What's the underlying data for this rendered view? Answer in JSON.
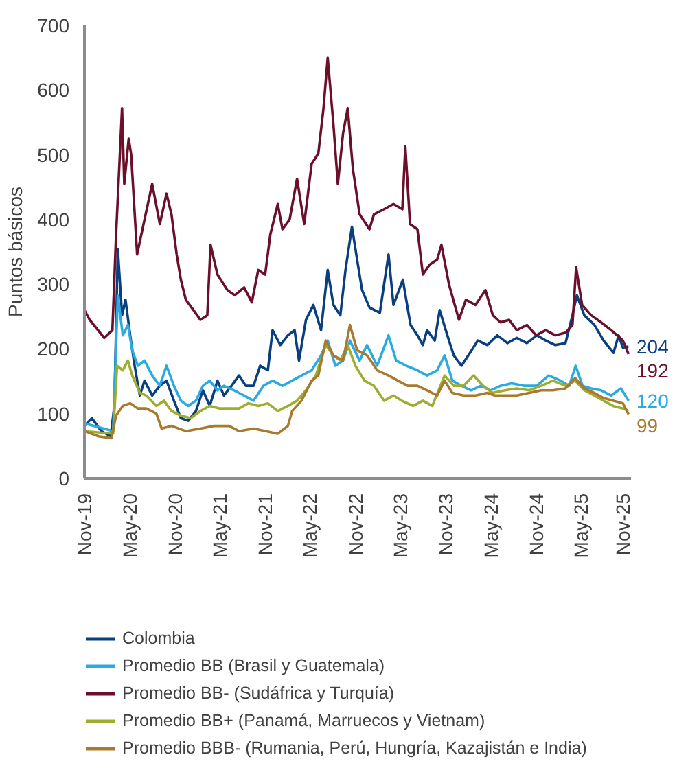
{
  "chart_data": {
    "type": "line",
    "ylabel": "Puntos básicos",
    "legend": "bottom",
    "grid": false,
    "line_style": "solid",
    "xlim": [
      "2019-11-01",
      "2025-11-20"
    ],
    "ylim": [
      0,
      700
    ],
    "yticks": [
      0,
      100,
      200,
      300,
      400,
      500,
      600,
      700
    ],
    "xticks": [
      {
        "value": "2019-11-01",
        "label": "Nov-19"
      },
      {
        "value": "2020-05-01",
        "label": "May-20"
      },
      {
        "value": "2020-11-01",
        "label": "Nov-20"
      },
      {
        "value": "2021-05-01",
        "label": "May-21"
      },
      {
        "value": "2021-11-01",
        "label": "Nov-21"
      },
      {
        "value": "2022-05-01",
        "label": "May-22"
      },
      {
        "value": "2022-11-01",
        "label": "Nov-22"
      },
      {
        "value": "2023-05-01",
        "label": "May-23"
      },
      {
        "value": "2023-11-01",
        "label": "Nov-23"
      },
      {
        "value": "2024-05-01",
        "label": "May-24"
      },
      {
        "value": "2024-11-01",
        "label": "Nov-24"
      },
      {
        "value": "2025-05-01",
        "label": "May-25"
      },
      {
        "value": "2025-11-01",
        "label": "Nov-25"
      }
    ],
    "series": [
      {
        "name": "Colombia",
        "color": "#0a3f7f",
        "x": [
          "2019-11-01",
          "2019-12-01",
          "2020-01-08",
          "2020-02-15",
          "2020-03-01",
          "2020-03-15",
          "2020-04-01",
          "2020-04-15",
          "2020-05-04",
          "2020-05-22",
          "2020-06-12",
          "2020-07-01",
          "2020-08-01",
          "2020-09-01",
          "2020-09-28",
          "2020-10-28",
          "2020-11-25",
          "2020-12-25",
          "2021-01-25",
          "2021-02-22",
          "2021-03-22",
          "2021-04-22",
          "2021-05-18",
          "2021-06-18",
          "2021-07-18",
          "2021-08-15",
          "2021-09-15",
          "2021-10-12",
          "2021-11-12",
          "2021-12-01",
          "2022-01-01",
          "2022-02-01",
          "2022-02-28",
          "2022-03-18",
          "2022-04-15",
          "2022-05-15",
          "2022-06-15",
          "2022-07-12",
          "2022-08-04",
          "2022-09-01",
          "2022-09-22",
          "2022-10-18",
          "2022-11-08",
          "2022-11-28",
          "2022-12-28",
          "2023-02-08",
          "2023-03-15",
          "2023-04-04",
          "2023-05-12",
          "2023-06-12",
          "2023-07-10",
          "2023-08-01",
          "2023-08-18",
          "2023-09-18",
          "2023-10-08",
          "2023-11-08",
          "2023-12-04",
          "2024-01-04",
          "2024-02-01",
          "2024-03-10",
          "2024-04-18",
          "2024-05-28",
          "2024-07-08",
          "2024-08-15",
          "2024-09-25",
          "2024-11-04",
          "2024-12-10",
          "2025-01-18",
          "2025-02-28",
          "2025-03-28",
          "2025-04-15",
          "2025-05-15",
          "2025-06-25",
          "2025-08-01",
          "2025-09-10",
          "2025-10-01",
          "2025-10-18",
          "2025-11-10"
        ],
        "values": [
          81,
          93,
          73,
          65,
          112,
          354,
          252,
          276,
          221,
          174,
          128,
          151,
          128,
          143,
          151,
          120,
          93,
          89,
          104,
          136,
          112,
          151,
          128,
          143,
          159,
          143,
          143,
          174,
          167,
          229,
          206,
          221,
          229,
          182,
          245,
          268,
          229,
          322,
          268,
          252,
          322,
          389,
          338,
          291,
          264,
          256,
          346,
          268,
          307,
          237,
          221,
          206,
          229,
          213,
          260,
          221,
          190,
          174,
          190,
          213,
          206,
          221,
          209,
          217,
          209,
          221,
          213,
          206,
          209,
          252,
          283,
          252,
          237,
          213,
          194,
          221,
          202,
          204
        ],
        "value_labels": [
          null,
          null,
          null,
          null,
          null,
          null,
          null,
          null,
          null,
          null,
          null,
          null,
          null,
          null,
          null,
          null,
          null,
          null,
          null,
          null,
          null,
          null,
          null,
          null,
          null,
          null,
          null,
          null,
          null,
          null,
          null,
          null,
          null,
          null,
          null,
          null,
          null,
          null,
          null,
          null,
          null,
          null,
          null,
          null,
          null,
          null,
          null,
          null,
          null,
          null,
          null,
          null,
          null,
          null,
          null,
          null,
          null,
          null,
          null,
          null,
          null,
          null,
          null,
          null,
          null,
          null,
          null,
          null,
          null,
          null,
          null,
          null,
          null,
          null,
          null,
          null,
          null,
          "204"
        ]
      },
      {
        "name": "Promedio BB (Brasil y Guatemala)",
        "color": "#2aaae2",
        "x": [
          "2019-11-01",
          "2020-02-25",
          "2020-03-15",
          "2020-04-04",
          "2020-04-25",
          "2020-05-12",
          "2020-06-04",
          "2020-07-01",
          "2020-08-01",
          "2020-09-01",
          "2020-09-28",
          "2020-10-28",
          "2020-11-25",
          "2020-12-25",
          "2021-01-25",
          "2021-02-22",
          "2021-03-22",
          "2021-04-22",
          "2021-05-18",
          "2021-06-28",
          "2021-08-08",
          "2021-09-15",
          "2021-10-25",
          "2021-12-01",
          "2022-01-10",
          "2022-02-18",
          "2022-03-28",
          "2022-05-08",
          "2022-06-15",
          "2022-07-12",
          "2022-08-12",
          "2022-09-12",
          "2022-10-10",
          "2022-11-18",
          "2022-12-18",
          "2023-01-28",
          "2023-03-15",
          "2023-04-15",
          "2023-05-25",
          "2023-07-10",
          "2023-08-18",
          "2023-09-28",
          "2023-10-28",
          "2023-11-28",
          "2024-01-04",
          "2024-02-12",
          "2024-03-22",
          "2024-05-01",
          "2024-06-10",
          "2024-07-25",
          "2024-09-15",
          "2024-11-04",
          "2024-12-22",
          "2025-02-08",
          "2025-03-15",
          "2025-04-10",
          "2025-05-08",
          "2025-06-12",
          "2025-07-22",
          "2025-09-01",
          "2025-10-10",
          "2025-11-10"
        ],
        "values": [
          85,
          73,
          283,
          221,
          237,
          198,
          174,
          182,
          159,
          143,
          174,
          143,
          120,
          112,
          120,
          143,
          151,
          136,
          143,
          136,
          128,
          120,
          143,
          151,
          143,
          151,
          159,
          167,
          190,
          213,
          174,
          182,
          213,
          182,
          206,
          174,
          221,
          182,
          174,
          167,
          159,
          167,
          190,
          151,
          143,
          136,
          143,
          136,
          143,
          147,
          143,
          143,
          159,
          151,
          143,
          174,
          143,
          139,
          136,
          128,
          139,
          120
        ],
        "value_labels": [
          null,
          null,
          null,
          null,
          null,
          null,
          null,
          null,
          null,
          null,
          null,
          null,
          null,
          null,
          null,
          null,
          null,
          null,
          null,
          null,
          null,
          null,
          null,
          null,
          null,
          null,
          null,
          null,
          null,
          null,
          null,
          null,
          null,
          null,
          null,
          null,
          null,
          null,
          null,
          null,
          null,
          null,
          null,
          null,
          null,
          null,
          null,
          null,
          null,
          null,
          null,
          null,
          null,
          null,
          null,
          null,
          null,
          null,
          null,
          null,
          null,
          "120"
        ]
      },
      {
        "name": "Promedio BB- (Sudáfrica y Turquía)",
        "color": "#6b0f2a",
        "x": [
          "2019-11-01",
          "2019-11-22",
          "2020-01-20",
          "2020-02-22",
          "2020-03-08",
          "2020-04-01",
          "2020-04-10",
          "2020-04-28",
          "2020-05-08",
          "2020-06-01",
          "2020-07-01",
          "2020-08-01",
          "2020-09-01",
          "2020-09-28",
          "2020-10-18",
          "2020-11-08",
          "2020-11-25",
          "2020-12-15",
          "2021-01-15",
          "2021-02-12",
          "2021-03-12",
          "2021-03-25",
          "2021-04-22",
          "2021-06-01",
          "2021-07-01",
          "2021-08-08",
          "2021-09-08",
          "2021-10-04",
          "2021-11-01",
          "2021-11-22",
          "2021-12-22",
          "2022-01-10",
          "2022-02-08",
          "2022-03-10",
          "2022-04-08",
          "2022-05-08",
          "2022-06-04",
          "2022-06-25",
          "2022-07-12",
          "2022-08-04",
          "2022-08-22",
          "2022-09-12",
          "2022-10-01",
          "2022-10-22",
          "2022-11-18",
          "2022-12-28",
          "2023-01-15",
          "2023-02-25",
          "2023-04-04",
          "2023-05-10",
          "2023-05-22",
          "2023-06-10",
          "2023-07-10",
          "2023-08-01",
          "2023-08-28",
          "2023-09-28",
          "2023-10-15",
          "2023-11-15",
          "2023-12-25",
          "2024-01-22",
          "2024-03-01",
          "2024-04-10",
          "2024-05-10",
          "2024-06-10",
          "2024-07-15",
          "2024-08-15",
          "2024-09-25",
          "2024-11-01",
          "2024-12-10",
          "2025-01-18",
          "2025-02-28",
          "2025-03-28",
          "2025-04-12",
          "2025-05-06",
          "2025-06-12",
          "2025-07-22",
          "2025-09-01",
          "2025-10-18",
          "2025-11-10"
        ],
        "values": [
          260,
          245,
          217,
          229,
          377,
          572,
          455,
          525,
          500,
          346,
          400,
          455,
          393,
          440,
          408,
          346,
          307,
          276,
          260,
          245,
          252,
          361,
          315,
          291,
          283,
          295,
          272,
          322,
          315,
          377,
          424,
          385,
          400,
          463,
          393,
          486,
          502,
          572,
          650,
          548,
          455,
          533,
          572,
          478,
          408,
          385,
          408,
          416,
          424,
          416,
          513,
          393,
          385,
          315,
          330,
          338,
          361,
          299,
          245,
          276,
          268,
          291,
          252,
          241,
          245,
          229,
          237,
          221,
          229,
          221,
          225,
          237,
          326,
          268,
          252,
          241,
          229,
          213,
          192
        ],
        "value_labels": [
          null,
          null,
          null,
          null,
          null,
          null,
          null,
          null,
          null,
          null,
          null,
          null,
          null,
          null,
          null,
          null,
          null,
          null,
          null,
          null,
          null,
          null,
          null,
          null,
          null,
          null,
          null,
          null,
          null,
          null,
          null,
          null,
          null,
          null,
          null,
          null,
          null,
          null,
          null,
          null,
          null,
          null,
          null,
          null,
          null,
          null,
          null,
          null,
          null,
          null,
          null,
          null,
          null,
          null,
          null,
          null,
          null,
          null,
          null,
          null,
          null,
          null,
          null,
          null,
          null,
          null,
          null,
          null,
          null,
          null,
          null,
          null,
          null,
          null,
          null,
          null,
          null,
          null,
          "192"
        ]
      },
      {
        "name": "Promedio BB+ (Panamá, Marruecos y Vietnam)",
        "color": "#9fad2e",
        "x": [
          "2019-11-01",
          "2020-02-25",
          "2020-03-12",
          "2020-04-04",
          "2020-04-25",
          "2020-05-12",
          "2020-06-12",
          "2020-07-08",
          "2020-08-18",
          "2020-09-18",
          "2020-10-18",
          "2020-11-25",
          "2021-01-04",
          "2021-02-12",
          "2021-03-22",
          "2021-05-01",
          "2021-06-08",
          "2021-07-18",
          "2021-08-25",
          "2021-10-04",
          "2021-11-12",
          "2021-12-22",
          "2022-02-01",
          "2022-03-10",
          "2022-04-15",
          "2022-05-25",
          "2022-07-04",
          "2022-08-04",
          "2022-09-01",
          "2022-10-01",
          "2022-11-01",
          "2022-12-08",
          "2023-01-15",
          "2023-02-25",
          "2023-04-04",
          "2023-05-08",
          "2023-06-22",
          "2023-08-01",
          "2023-09-08",
          "2023-10-28",
          "2023-12-04",
          "2024-01-12",
          "2024-02-22",
          "2024-04-01",
          "2024-05-08",
          "2024-06-28",
          "2024-08-15",
          "2024-10-04",
          "2024-11-22",
          "2025-01-08",
          "2025-02-28",
          "2025-04-08",
          "2025-05-15",
          "2025-06-25",
          "2025-08-01",
          "2025-09-08",
          "2025-10-18",
          "2025-11-10"
        ],
        "values": [
          73,
          69,
          174,
          167,
          182,
          159,
          132,
          128,
          112,
          120,
          104,
          97,
          93,
          104,
          112,
          108,
          108,
          108,
          116,
          112,
          116,
          104,
          112,
          120,
          136,
          159,
          206,
          190,
          182,
          206,
          174,
          151,
          143,
          120,
          128,
          120,
          112,
          120,
          112,
          159,
          143,
          143,
          159,
          143,
          132,
          136,
          139,
          136,
          143,
          151,
          143,
          151,
          136,
          128,
          120,
          112,
          108,
          104
        ]
      },
      {
        "name": "Promedio BBB- (Rumania, Perú, Hungría, Kazajistán e India)",
        "color": "#a87a2e",
        "x": [
          "2019-11-01",
          "2019-12-28",
          "2020-02-18",
          "2020-03-08",
          "2020-04-04",
          "2020-05-04",
          "2020-06-04",
          "2020-07-08",
          "2020-08-18",
          "2020-09-08",
          "2020-10-18",
          "2020-12-15",
          "2021-02-12",
          "2021-04-08",
          "2021-06-08",
          "2021-07-18",
          "2021-09-15",
          "2021-11-04",
          "2021-12-22",
          "2022-02-01",
          "2022-02-18",
          "2022-03-28",
          "2022-05-08",
          "2022-06-04",
          "2022-07-04",
          "2022-08-04",
          "2022-09-12",
          "2022-10-10",
          "2022-11-08",
          "2022-12-18",
          "2023-01-28",
          "2023-03-15",
          "2023-04-22",
          "2023-06-01",
          "2023-07-10",
          "2023-08-18",
          "2023-09-28",
          "2023-10-28",
          "2023-11-28",
          "2024-01-12",
          "2024-03-01",
          "2024-04-18",
          "2024-05-18",
          "2024-06-28",
          "2024-08-15",
          "2024-10-04",
          "2024-11-22",
          "2025-01-08",
          "2025-02-28",
          "2025-04-08",
          "2025-05-15",
          "2025-06-25",
          "2025-08-01",
          "2025-09-08",
          "2025-10-18",
          "2025-11-10"
        ],
        "values": [
          73,
          65,
          62,
          97,
          112,
          116,
          108,
          108,
          100,
          77,
          81,
          73,
          77,
          81,
          81,
          73,
          77,
          73,
          69,
          81,
          104,
          120,
          151,
          159,
          213,
          190,
          182,
          237,
          198,
          190,
          167,
          159,
          151,
          143,
          143,
          136,
          128,
          151,
          132,
          128,
          128,
          132,
          128,
          128,
          128,
          132,
          136,
          136,
          139,
          155,
          139,
          132,
          124,
          120,
          116,
          99
        ],
        "value_labels": [
          null,
          null,
          null,
          null,
          null,
          null,
          null,
          null,
          null,
          null,
          null,
          null,
          null,
          null,
          null,
          null,
          null,
          null,
          null,
          null,
          null,
          null,
          null,
          null,
          null,
          null,
          null,
          null,
          null,
          null,
          null,
          null,
          null,
          null,
          null,
          null,
          null,
          null,
          null,
          null,
          null,
          null,
          null,
          null,
          null,
          null,
          null,
          null,
          null,
          null,
          null,
          null,
          null,
          null,
          null,
          "99"
        ]
      }
    ]
  }
}
